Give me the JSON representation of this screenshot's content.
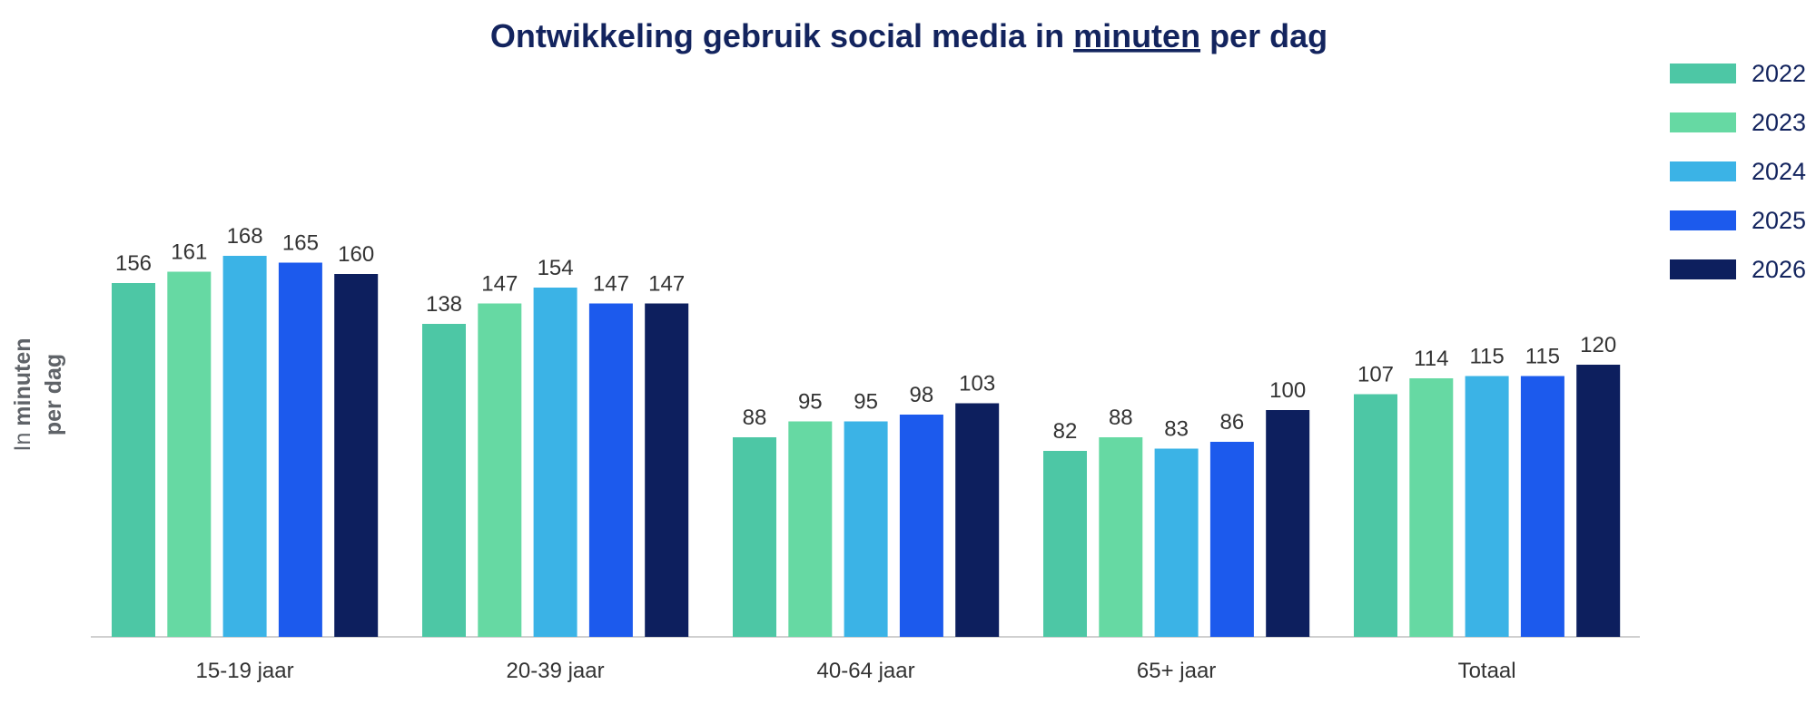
{
  "chart_data": {
    "type": "bar",
    "title_before": "Ontwikkeling gebruik social media in ",
    "title_underlined": "minuten",
    "title_after": " per dag",
    "ylabel_line1_prefix": "In ",
    "ylabel_line1_bold": "minuten",
    "ylabel_line2": "per dag",
    "categories": [
      "15-19 jaar",
      "20-39 jaar",
      "40-64 jaar",
      "65+ jaar",
      "Totaal"
    ],
    "series": [
      {
        "name": "2022",
        "color": "#4dc7a5",
        "values": [
          156,
          138,
          88,
          82,
          107
        ]
      },
      {
        "name": "2023",
        "color": "#66d9a3",
        "values": [
          161,
          147,
          95,
          88,
          114
        ]
      },
      {
        "name": "2024",
        "color": "#3bb3e6",
        "values": [
          168,
          154,
          95,
          83,
          115
        ]
      },
      {
        "name": "2025",
        "color": "#1c5aed",
        "values": [
          165,
          147,
          98,
          86,
          115
        ]
      },
      {
        "name": "2026",
        "color": "#0d1f5e",
        "values": [
          160,
          147,
          103,
          100,
          120
        ]
      }
    ],
    "ylim": [
      0,
      168
    ],
    "legend_position": "top-right",
    "grid": false
  }
}
